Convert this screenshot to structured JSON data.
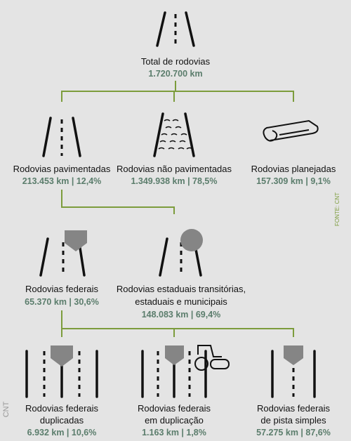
{
  "nodes": [
    {
      "lines": [
        "Total de rodovias"
      ],
      "value": "1.720.700 km"
    },
    {
      "lines": [
        "Rodovias pavimentadas"
      ],
      "value": "213.453 km | 12,4%"
    },
    {
      "lines": [
        "Rodovias não pavimentadas"
      ],
      "value": "1.349.938 km | 78,5%"
    },
    {
      "lines": [
        "Rodovias planejadas"
      ],
      "value": "157.309 km | 9,1%"
    },
    {
      "lines": [
        "Rodovias federais"
      ],
      "value": "65.370 km | 30,6%"
    },
    {
      "lines": [
        "Rodovias estaduais transitórias,",
        "estaduais e municipais"
      ],
      "value": "148.083 km | 69,4%"
    },
    {
      "lines": [
        "Rodovias federais",
        "duplicadas"
      ],
      "value": "6.932 km | 10,6%"
    },
    {
      "lines": [
        "Rodovias federais",
        "em duplicação"
      ],
      "value": "1.163 km | 1,8%"
    },
    {
      "lines": [
        "Rodovias federais",
        "de pista simples"
      ],
      "value": "57.275 km | 87,6%"
    }
  ],
  "source": "FONTE: CNT",
  "credit": "CNT"
}
